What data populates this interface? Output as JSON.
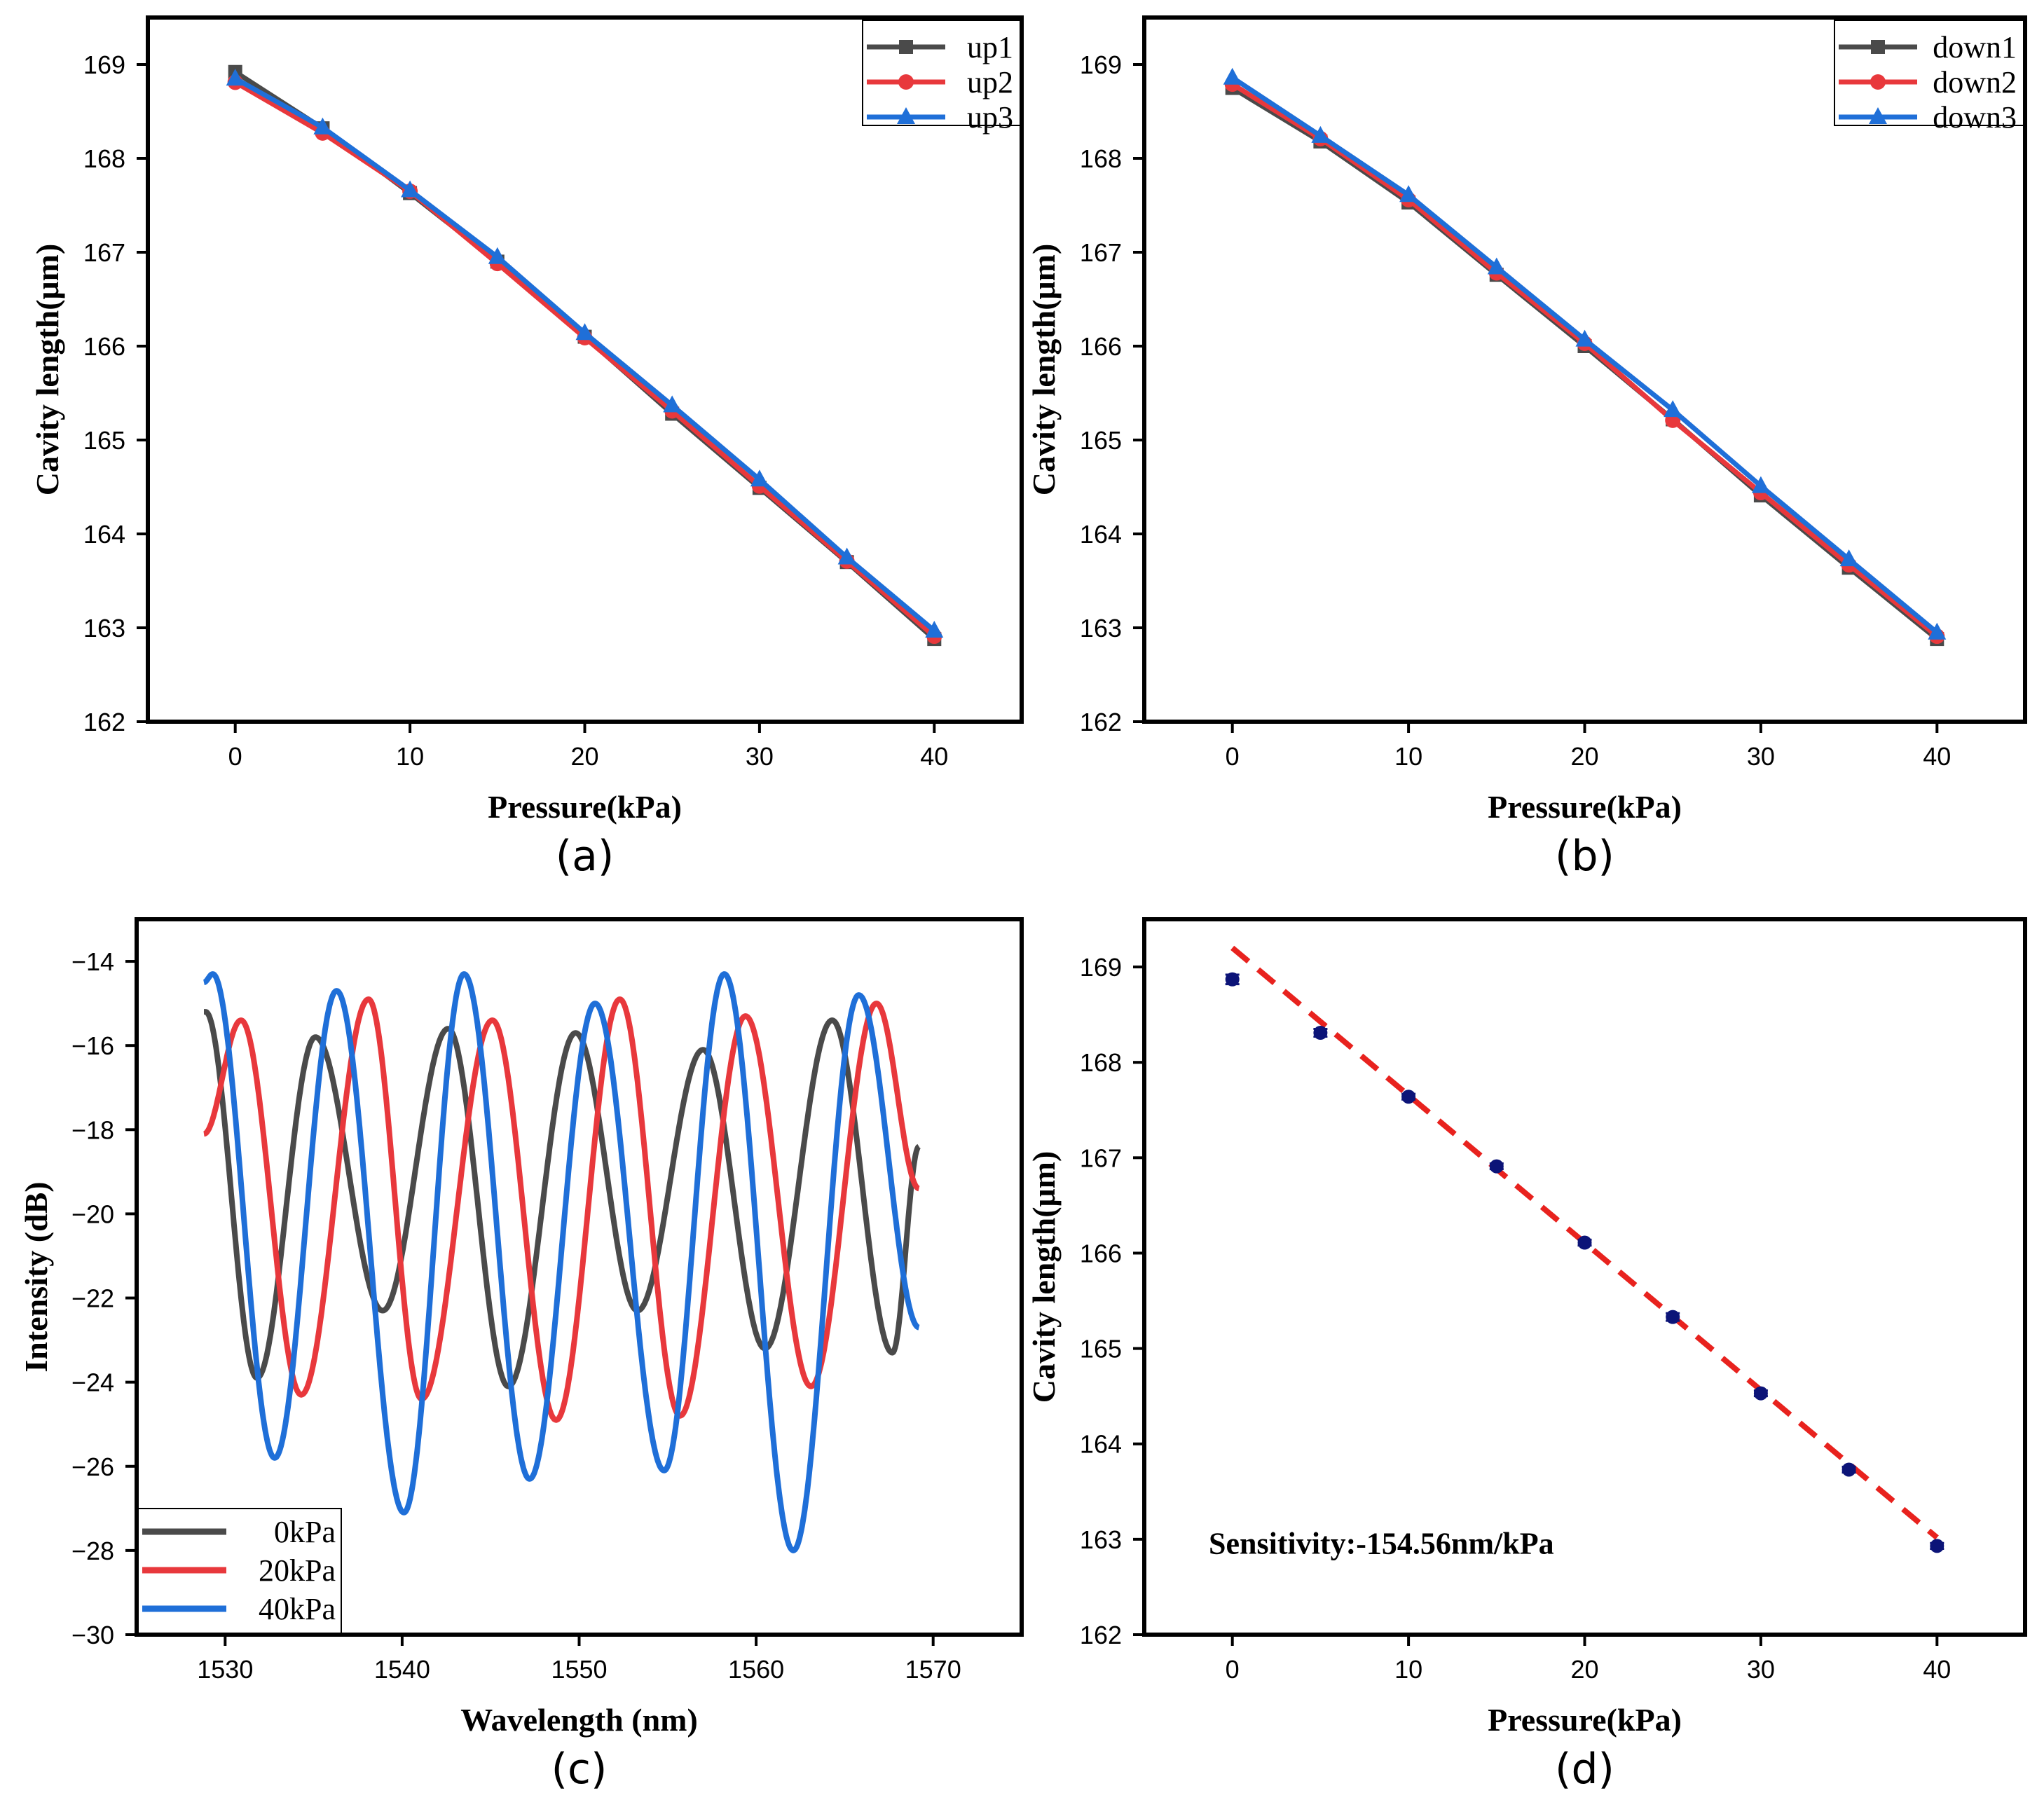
{
  "colors": {
    "black": "#4a4a4a",
    "red": "#e8383c",
    "blue": "#1f6fd8",
    "navy": "#0c1478",
    "fit": "#e8221e"
  },
  "chart_data": [
    {
      "id": "a",
      "type": "line",
      "panel_label": "(a)",
      "xlabel": "Pressure(kPa)",
      "ylabel": "Cavity length(μm)",
      "xlim": [
        -5,
        45
      ],
      "ylim": [
        162,
        169.5
      ],
      "xticks": [
        0,
        10,
        20,
        30,
        40
      ],
      "yticks": [
        162,
        163,
        164,
        165,
        166,
        167,
        168,
        169
      ],
      "legend_position": "top-right",
      "x": [
        0,
        5,
        10,
        15,
        20,
        25,
        30,
        35,
        40
      ],
      "series": [
        {
          "name": "up1",
          "color": "black",
          "marker": "square",
          "values": [
            168.92,
            168.32,
            167.63,
            166.9,
            166.1,
            165.28,
            164.49,
            163.7,
            162.88
          ]
        },
        {
          "name": "up2",
          "color": "red",
          "marker": "circle",
          "values": [
            168.81,
            168.27,
            167.65,
            166.88,
            166.09,
            165.31,
            164.51,
            163.71,
            162.91
          ]
        },
        {
          "name": "up3",
          "color": "blue",
          "marker": "triangle",
          "values": [
            168.85,
            168.33,
            167.66,
            166.95,
            166.14,
            165.37,
            164.58,
            163.75,
            162.97
          ]
        }
      ]
    },
    {
      "id": "b",
      "type": "line",
      "panel_label": "(b)",
      "xlabel": "Pressure(kPa)",
      "ylabel": "Cavity length(μm)",
      "xlim": [
        -5,
        45
      ],
      "ylim": [
        162,
        169.5
      ],
      "xticks": [
        0,
        10,
        20,
        30,
        40
      ],
      "yticks": [
        162,
        163,
        164,
        165,
        166,
        167,
        168,
        169
      ],
      "legend_position": "top-right",
      "x": [
        0,
        5,
        10,
        15,
        20,
        25,
        30,
        35,
        40
      ],
      "series": [
        {
          "name": "down1",
          "color": "black",
          "marker": "square",
          "values": [
            168.75,
            168.18,
            167.53,
            166.76,
            166.0,
            165.22,
            164.41,
            163.64,
            162.88
          ]
        },
        {
          "name": "down2",
          "color": "red",
          "marker": "circle",
          "values": [
            168.79,
            168.21,
            167.56,
            166.78,
            166.03,
            165.21,
            164.44,
            163.67,
            162.91
          ]
        },
        {
          "name": "down3",
          "color": "blue",
          "marker": "triangle",
          "values": [
            168.86,
            168.24,
            167.61,
            166.84,
            166.07,
            165.32,
            164.51,
            163.73,
            162.95
          ]
        }
      ]
    },
    {
      "id": "c",
      "type": "line",
      "panel_label": "(c)",
      "xlabel": "Wavelength (nm)",
      "ylabel": "Intensity (dB)",
      "xlim": [
        1525,
        1575
      ],
      "ylim": [
        -30,
        -13
      ],
      "xticks": [
        1530,
        1540,
        1550,
        1560,
        1570
      ],
      "yticks": [
        -30,
        -28,
        -26,
        -24,
        -22,
        -20,
        -18,
        -16,
        -14
      ],
      "legend_position": "bottom-left",
      "wavelength_range": [
        1528.8,
        1569.2
      ],
      "series": [
        {
          "name": "0kPa",
          "color": "black",
          "maxima": [
            1528.9,
            1535.1,
            1542.6,
            1549.8,
            1557.0,
            1564.3
          ],
          "max_levels": [
            -15.2,
            -15.8,
            -15.6,
            -15.7,
            -16.1,
            -15.4
          ],
          "minima": [
            1531.8,
            1538.9,
            1546.0,
            1553.3,
            1560.5,
            1567.7
          ],
          "min_levels": [
            -23.9,
            -22.3,
            -24.1,
            -22.3,
            -23.2,
            -23.3
          ],
          "end_level": -18.4
        },
        {
          "name": "20kPa",
          "color": "red",
          "maxima": [
            1530.9,
            1538.1,
            1545.1,
            1552.3,
            1559.4,
            1566.8
          ],
          "max_levels": [
            -15.4,
            -14.9,
            -15.4,
            -14.9,
            -15.3,
            -15.0
          ],
          "minima": [
            1534.3,
            1541.1,
            1548.7,
            1555.7,
            1563.1
          ],
          "min_levels": [
            -24.3,
            -24.4,
            -24.9,
            -24.8,
            -24.1
          ],
          "start_level": -18.1,
          "end_level": -19.4
        },
        {
          "name": "40kPa",
          "color": "blue",
          "maxima": [
            1529.3,
            1536.3,
            1543.5,
            1550.9,
            1558.2,
            1565.8
          ],
          "max_levels": [
            -14.3,
            -14.7,
            -14.3,
            -15.0,
            -14.3,
            -14.8
          ],
          "minima": [
            1532.8,
            1540.1,
            1547.2,
            1554.8,
            1562.1
          ],
          "min_levels": [
            -25.8,
            -27.1,
            -26.3,
            -26.1,
            -28.0
          ],
          "start_level": -14.5,
          "end_level": -22.7
        }
      ]
    },
    {
      "id": "d",
      "type": "scatter",
      "panel_label": "(d)",
      "xlabel": "Pressure(kPa)",
      "ylabel": "Cavity length(μm)",
      "xlim": [
        -5,
        45
      ],
      "ylim": [
        162,
        169.5
      ],
      "xticks": [
        0,
        10,
        20,
        30,
        40
      ],
      "yticks": [
        162,
        163,
        164,
        165,
        166,
        167,
        168,
        169
      ],
      "annotation": "Sensitivity:-154.56nm/kPa",
      "x": [
        0,
        5,
        10,
        15,
        20,
        25,
        30,
        35,
        40
      ],
      "values": [
        168.87,
        168.31,
        167.64,
        166.91,
        166.11,
        165.33,
        164.53,
        163.73,
        162.93
      ],
      "errors": [
        0.05,
        0.04,
        0.03,
        0.03,
        0.03,
        0.04,
        0.03,
        0.03,
        0.03
      ],
      "fit": {
        "slope": -0.15456,
        "intercept": 169.2,
        "x_range": [
          0,
          40
        ]
      }
    }
  ]
}
